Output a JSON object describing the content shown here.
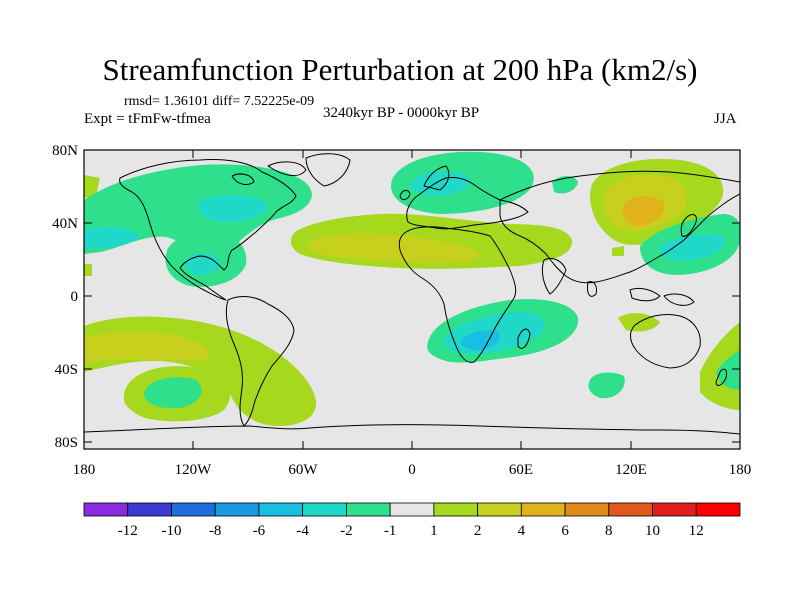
{
  "title": "Streamfunction Perturbation at 200 hPa (km2/s)",
  "stats": "rmsd= 1.36101  diff= 7.52225e-09",
  "experiment": "Expt = tFmFw-tfmea",
  "period": "3240kyr BP - 0000kyr BP",
  "season": "JJA",
  "lat_ticks": [
    "80N",
    "40N",
    "0",
    "40S",
    "80S"
  ],
  "lon_ticks": [
    "180",
    "120W",
    "60W",
    "0",
    "60E",
    "120E",
    "180"
  ],
  "colorbar": {
    "labels": [
      "-12",
      "-10",
      "-8",
      "-6",
      "-4",
      "-2",
      "-1",
      "1",
      "2",
      "4",
      "6",
      "8",
      "10",
      "12"
    ],
    "colors": [
      "#8a2be2",
      "#3b3bd4",
      "#1e6fdc",
      "#1a98e0",
      "#19bfe0",
      "#1fd8c8",
      "#2ee08c",
      "#e6e6e6",
      "#a6d81e",
      "#c8d01e",
      "#e0b31c",
      "#e08a1c",
      "#e0581c",
      "#e01e1e",
      "#ff0000"
    ]
  },
  "colors": {
    "background": "#e6e6e6",
    "neg1": "#2ee08c",
    "neg2": "#1fd8c8",
    "neg3": "#19bfe0",
    "pos1": "#a6d81e",
    "pos2": "#c8d01e",
    "pos3": "#e0b31c",
    "coast": "#000000"
  }
}
